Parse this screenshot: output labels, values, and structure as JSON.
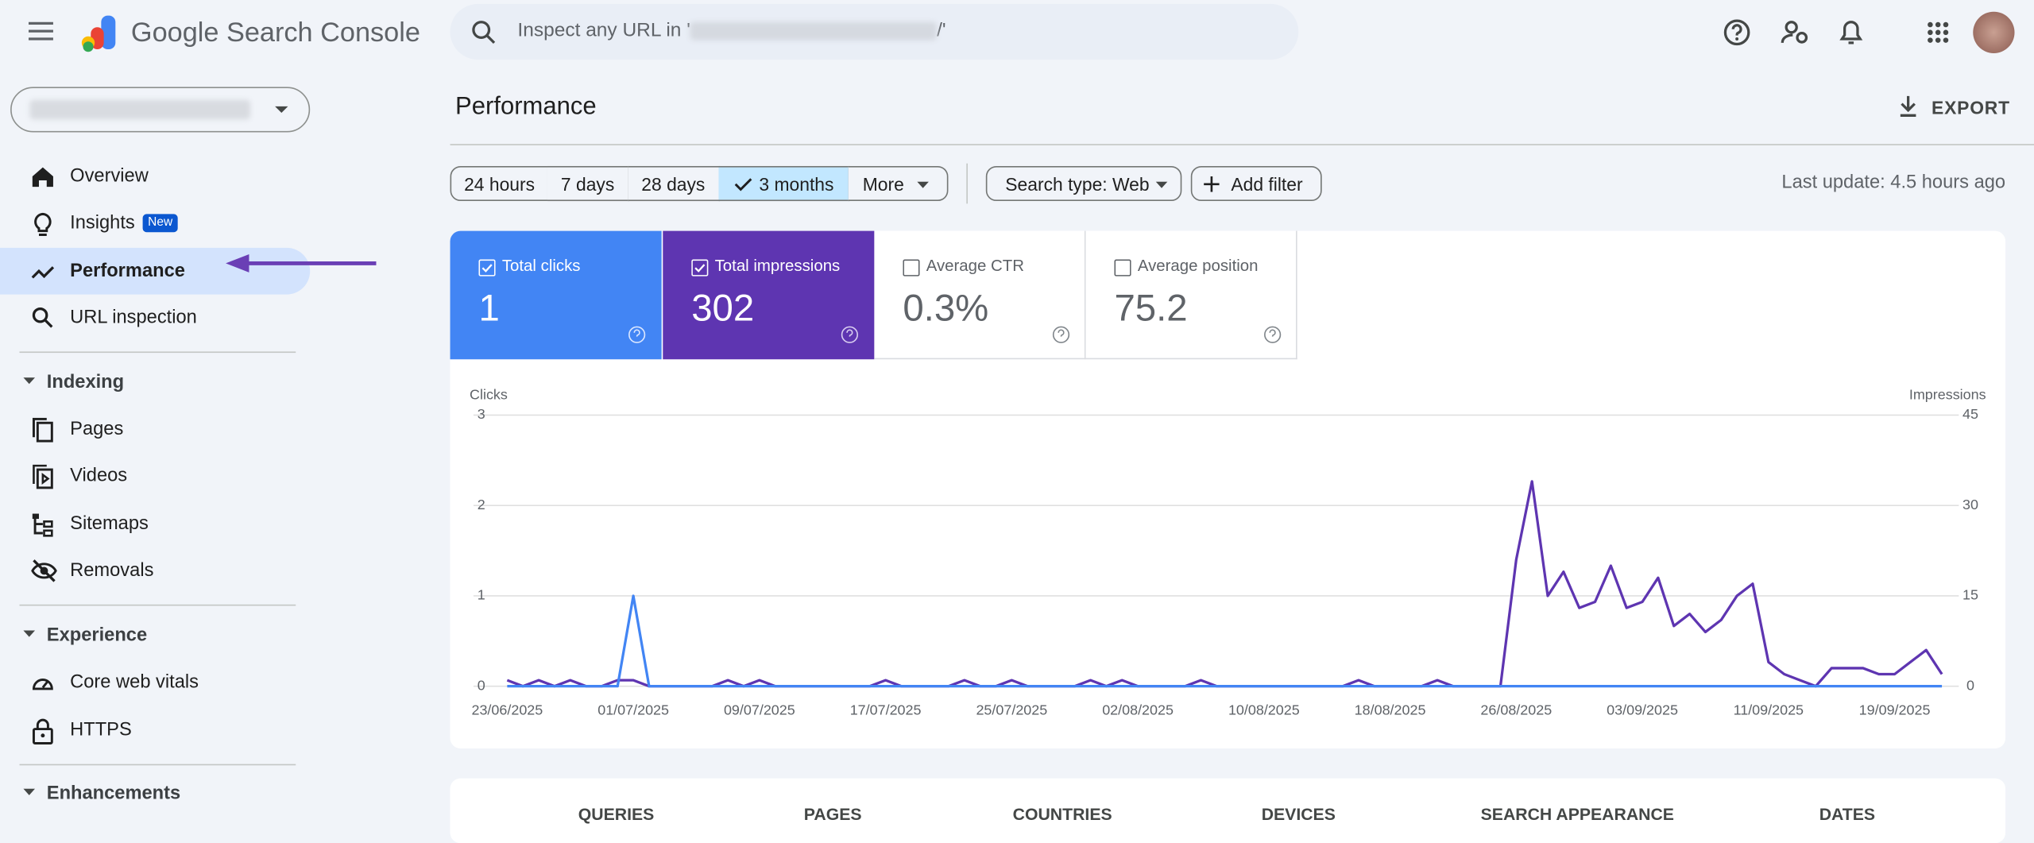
{
  "header": {
    "product": "Google Search Console",
    "search_prefix": "Inspect any URL in '",
    "search_suffix": "/'"
  },
  "nav": {
    "top": [
      {
        "label": "Overview"
      },
      {
        "label": "Insights",
        "badge": "New"
      },
      {
        "label": "Performance"
      },
      {
        "label": "URL inspection"
      }
    ],
    "sections": [
      {
        "title": "Indexing",
        "items": [
          "Pages",
          "Videos",
          "Sitemaps",
          "Removals"
        ]
      },
      {
        "title": "Experience",
        "items": [
          "Core web vitals",
          "HTTPS"
        ]
      },
      {
        "title": "Enhancements",
        "items": []
      }
    ]
  },
  "page_title": "Performance",
  "export": "EXPORT",
  "date_filters": [
    "24 hours",
    "7 days",
    "28 days",
    "3 months",
    "More"
  ],
  "search_type": "Search type: Web",
  "add_filter": "Add filter",
  "last_update": "Last update: 4.5 hours ago",
  "metrics": [
    {
      "label": "Total clicks",
      "value": "1"
    },
    {
      "label": "Total impressions",
      "value": "302"
    },
    {
      "label": "Average CTR",
      "value": "0.3%"
    },
    {
      "label": "Average position",
      "value": "75.2"
    }
  ],
  "chart_data": {
    "type": "line",
    "y_label": "Clicks",
    "y2_label": "Impressions",
    "categories": [
      "23/06/2025",
      null,
      null,
      null,
      null,
      null,
      null,
      null,
      "01/07/2025",
      null,
      null,
      null,
      null,
      null,
      null,
      null,
      "09/07/2025",
      null,
      null,
      null,
      null,
      null,
      null,
      null,
      "17/07/2025",
      null,
      null,
      null,
      null,
      null,
      null,
      null,
      "25/07/2025",
      null,
      null,
      null,
      null,
      null,
      null,
      null,
      "02/08/2025",
      null,
      null,
      null,
      null,
      null,
      null,
      null,
      "10/08/2025",
      null,
      null,
      null,
      null,
      null,
      null,
      null,
      "18/08/2025",
      null,
      null,
      null,
      null,
      null,
      null,
      null,
      "26/08/2025",
      null,
      null,
      null,
      null,
      null,
      null,
      null,
      "03/09/2025",
      null,
      null,
      null,
      null,
      null,
      null,
      null,
      "11/09/2025",
      null,
      null,
      null,
      null,
      null,
      null,
      null,
      "19/09/2025",
      null,
      null,
      null
    ],
    "series": [
      {
        "color": "#4285f4",
        "values": [
          0,
          0,
          0,
          0,
          0,
          0,
          0,
          0,
          1,
          0,
          0,
          0,
          0,
          0,
          0,
          0,
          0,
          0,
          0,
          0,
          0,
          0,
          0,
          0,
          0,
          0,
          0,
          0,
          0,
          0,
          0,
          0,
          0,
          0,
          0,
          0,
          0,
          0,
          0,
          0,
          0,
          0,
          0,
          0,
          0,
          0,
          0,
          0,
          0,
          0,
          0,
          0,
          0,
          0,
          0,
          0,
          0,
          0,
          0,
          0,
          0,
          0,
          0,
          0,
          0,
          0,
          0,
          0,
          0,
          0,
          0,
          0,
          0,
          0,
          0,
          0,
          0,
          0,
          0,
          0,
          0,
          0,
          0,
          0,
          0,
          0,
          0,
          0,
          0,
          0,
          0,
          0
        ]
      },
      {
        "color": "#5e35b1",
        "axis": "y2",
        "values": [
          1,
          0,
          1,
          0,
          1,
          0,
          0,
          1,
          1,
          0,
          0,
          0,
          0,
          0,
          1,
          0,
          1,
          0,
          0,
          0,
          0,
          0,
          0,
          0,
          1,
          0,
          0,
          0,
          0,
          1,
          0,
          0,
          1,
          0,
          0,
          0,
          0,
          1,
          0,
          1,
          0,
          0,
          0,
          0,
          1,
          0,
          0,
          0,
          0,
          0,
          0,
          0,
          0,
          0,
          1,
          0,
          0,
          0,
          0,
          1,
          0,
          0,
          0,
          0,
          21,
          34,
          15,
          19,
          13,
          14,
          20,
          13,
          14,
          18,
          10,
          12,
          9,
          11,
          15,
          17,
          4,
          2,
          1,
          0,
          3,
          3,
          3,
          2,
          2,
          4,
          6,
          2
        ]
      }
    ],
    "ylim": [
      0,
      3
    ],
    "yticks": [
      0,
      1,
      2,
      3
    ],
    "y2lim": [
      0,
      45
    ],
    "y2ticks": [
      0,
      15,
      30,
      45
    ],
    "grid": true
  },
  "tabs": [
    "QUERIES",
    "PAGES",
    "COUNTRIES",
    "DEVICES",
    "SEARCH APPEARANCE",
    "DATES"
  ]
}
